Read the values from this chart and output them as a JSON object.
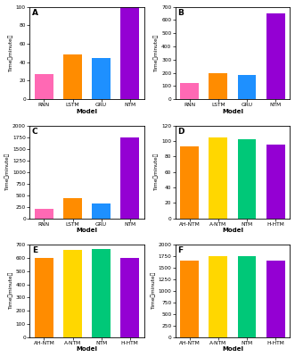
{
  "panels": [
    {
      "label": "A",
      "categories": [
        "RNN",
        "LSTM",
        "GRU",
        "NTM"
      ],
      "values": [
        27,
        48,
        45,
        100
      ],
      "colors": [
        "#FF69B4",
        "#FF8C00",
        "#1E90FF",
        "#9400D3"
      ],
      "ylabel": "Time（minute）",
      "xlabel": "Model",
      "ylim": [
        0,
        100
      ],
      "yticks": [
        0,
        20,
        40,
        60,
        80,
        100
      ]
    },
    {
      "label": "B",
      "categories": [
        "RNN",
        "LSTM",
        "GRU",
        "NTM"
      ],
      "values": [
        125,
        200,
        185,
        650
      ],
      "colors": [
        "#FF69B4",
        "#FF8C00",
        "#1E90FF",
        "#9400D3"
      ],
      "ylabel": "Time（minute）",
      "xlabel": "Model",
      "ylim": [
        0,
        700
      ],
      "yticks": [
        0,
        100,
        200,
        300,
        400,
        500,
        600,
        700
      ]
    },
    {
      "label": "C",
      "categories": [
        "RNN",
        "LSTM",
        "GRU",
        "NTM"
      ],
      "values": [
        200,
        430,
        320,
        1750
      ],
      "colors": [
        "#FF69B4",
        "#FF8C00",
        "#1E90FF",
        "#9400D3"
      ],
      "ylabel": "Time（minute）",
      "xlabel": "Model",
      "ylim": [
        0,
        2000
      ],
      "yticks": [
        0,
        250,
        500,
        750,
        1000,
        1250,
        1500,
        1750,
        2000
      ]
    },
    {
      "label": "D",
      "categories": [
        "AH-NTM",
        "A-NTM",
        "NTM",
        "H-HTM"
      ],
      "values": [
        93,
        105,
        102,
        96
      ],
      "colors": [
        "#FF8C00",
        "#FFD700",
        "#00C878",
        "#9400D3"
      ],
      "ylabel": "Time（minute）",
      "xlabel": "Model",
      "ylim": [
        0,
        120
      ],
      "yticks": [
        0,
        20,
        40,
        60,
        80,
        100,
        120
      ]
    },
    {
      "label": "E",
      "categories": [
        "AH-NTM",
        "A-NTM",
        "NTM",
        "H-HTM"
      ],
      "values": [
        600,
        660,
        665,
        600
      ],
      "colors": [
        "#FF8C00",
        "#FFD700",
        "#00C878",
        "#9400D3"
      ],
      "ylabel": "Time（minute）",
      "xlabel": "Model",
      "ylim": [
        0,
        700
      ],
      "yticks": [
        0,
        100,
        200,
        300,
        400,
        500,
        600,
        700
      ]
    },
    {
      "label": "F",
      "categories": [
        "AH-NTM",
        "A-NTM",
        "NTM",
        "H-HTM"
      ],
      "values": [
        1650,
        1750,
        1760,
        1650
      ],
      "colors": [
        "#FF8C00",
        "#FFD700",
        "#00C878",
        "#9400D3"
      ],
      "ylabel": "Time（minute）",
      "xlabel": "Model",
      "ylim": [
        0,
        2000
      ],
      "yticks": [
        0,
        250,
        500,
        750,
        1000,
        1250,
        1500,
        1750,
        2000
      ]
    }
  ],
  "background_color": "#FFFFFF",
  "panel_bg": "#FFFFFF"
}
